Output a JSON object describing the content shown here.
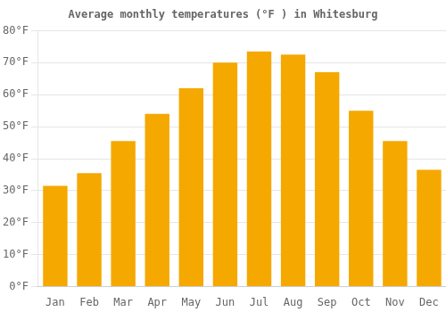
{
  "chart_data": {
    "type": "bar",
    "title": "Average monthly temperatures (°F ) in Whitesburg",
    "categories": [
      "Jan",
      "Feb",
      "Mar",
      "Apr",
      "May",
      "Jun",
      "Jul",
      "Aug",
      "Sep",
      "Oct",
      "Nov",
      "Dec"
    ],
    "values": [
      31.5,
      35.5,
      45.5,
      54.0,
      62.0,
      70.0,
      73.5,
      72.5,
      67.0,
      55.0,
      45.5,
      36.5
    ],
    "color": "#F5A800",
    "ylim": [
      0,
      80
    ],
    "yticks": [
      {
        "value": 0,
        "label": "0°F"
      },
      {
        "value": 10,
        "label": "10°F"
      },
      {
        "value": 20,
        "label": "20°F"
      },
      {
        "value": 30,
        "label": "30°F"
      },
      {
        "value": 40,
        "label": "40°F"
      },
      {
        "value": 50,
        "label": "50°F"
      },
      {
        "value": 60,
        "label": "60°F"
      },
      {
        "value": 70,
        "label": "70°F"
      },
      {
        "value": 80,
        "label": "80°F"
      }
    ],
    "grid": true
  }
}
